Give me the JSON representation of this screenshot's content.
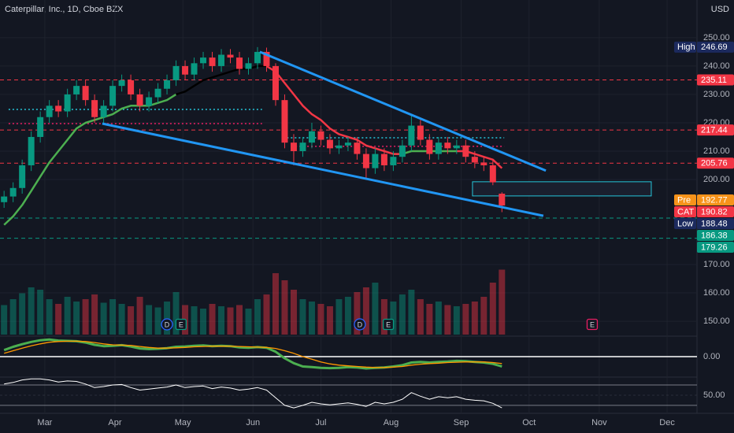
{
  "chart_data": {
    "type": "candlestick",
    "title": "Caterpillar, Inc., 1D, Cboe BZX",
    "currency": "USD",
    "up_color": "#089981",
    "down_color": "#f23645",
    "x": [
      43,
      47,
      51,
      55,
      59,
      63,
      67,
      71,
      75,
      79,
      83,
      87,
      91,
      95,
      99,
      103,
      107,
      111,
      115,
      119,
      123,
      127,
      131,
      135,
      139,
      143,
      147,
      151,
      155,
      159,
      163,
      167,
      171,
      175,
      179,
      183,
      187,
      191,
      195,
      199,
      203,
      207,
      211,
      215,
      219,
      223,
      227,
      231,
      235,
      239,
      243,
      247,
      251,
      255,
      259,
      263
    ],
    "open": [
      192,
      194,
      197,
      205,
      215,
      222,
      226,
      224,
      230,
      233,
      228,
      222,
      226,
      233,
      235,
      230,
      226,
      229,
      232,
      235,
      240,
      237,
      241,
      243,
      240,
      244,
      243,
      239,
      241,
      245,
      240,
      228,
      213,
      210,
      213,
      217,
      214,
      211,
      212,
      213,
      209,
      204,
      209,
      205,
      208,
      212,
      219,
      214,
      209,
      213,
      211,
      212,
      208,
      206,
      205,
      195
    ],
    "high": [
      196,
      199,
      207,
      217,
      224,
      228,
      228,
      232,
      235,
      235,
      230,
      228,
      235,
      237,
      237,
      232,
      231,
      234,
      237,
      242,
      242,
      243,
      245,
      245,
      246,
      246,
      245,
      243,
      246.69,
      246.5,
      241,
      230,
      216,
      215,
      220,
      219,
      216,
      214,
      215,
      215,
      211,
      211,
      211,
      210,
      214,
      222.5,
      221,
      216,
      215,
      215,
      214,
      214,
      210,
      208,
      207,
      195.5
    ],
    "low": [
      190,
      192,
      195,
      203,
      213,
      220,
      222,
      222,
      228,
      226,
      220,
      220,
      224,
      231,
      228,
      224,
      224,
      227,
      230,
      233,
      235,
      235,
      239,
      238,
      238,
      241,
      237,
      237,
      239,
      238,
      226,
      211,
      205,
      208,
      211,
      212,
      209,
      209,
      210,
      207,
      200,
      202,
      203,
      203,
      206,
      210,
      212,
      207,
      207,
      209,
      209,
      206,
      204,
      203,
      198,
      188.48
    ],
    "close": [
      194,
      197,
      205,
      215,
      222,
      226,
      224,
      230,
      233,
      228,
      222,
      226,
      233,
      235,
      230,
      226,
      229,
      232,
      235,
      240,
      237,
      241,
      243,
      240,
      244,
      243,
      239,
      241,
      245,
      240,
      228,
      213,
      210,
      213,
      217,
      214,
      211,
      212,
      213,
      209,
      204,
      209,
      205,
      208,
      212,
      219,
      214,
      209,
      213,
      211,
      212,
      208,
      206,
      205,
      199,
      190.82
    ],
    "volume": [
      2.5,
      3,
      3.5,
      4,
      3.8,
      3,
      2.6,
      3.2,
      2.8,
      3,
      3.4,
      2.7,
      3,
      2.6,
      2.4,
      3.2,
      2.5,
      2.3,
      2.8,
      3.6,
      2.5,
      2.4,
      2.2,
      2.6,
      2.4,
      2.3,
      2.5,
      2.2,
      3,
      3.4,
      5.2,
      4.6,
      3.8,
      3,
      2.8,
      2.6,
      2.4,
      3,
      3.2,
      3.6,
      4,
      4.4,
      3,
      2.8,
      3.4,
      3.8,
      3,
      2.6,
      2.8,
      2.5,
      2.4,
      2.6,
      2.8,
      3.2,
      4.4,
      5.5
    ],
    "volume_lim": [
      0,
      7
    ],
    "xlim": [
      41.2,
      349.2
    ],
    "xticks": [
      {
        "value": 61,
        "label": "Mar"
      },
      {
        "value": 92,
        "label": "Apr"
      },
      {
        "value": 122,
        "label": "May"
      },
      {
        "value": 153,
        "label": "Jun"
      },
      {
        "value": 183,
        "label": "Jul"
      },
      {
        "value": 214,
        "label": "Aug"
      },
      {
        "value": 245,
        "label": "Sep"
      },
      {
        "value": 275,
        "label": "Oct"
      },
      {
        "value": 306,
        "label": "Nov"
      },
      {
        "value": 336,
        "label": "Dec"
      }
    ],
    "ylim": [
      145.3,
      263.3
    ],
    "yticks": [
      {
        "value": 250,
        "label": "250.00"
      },
      {
        "value": 240,
        "label": "240.00"
      },
      {
        "value": 230,
        "label": "230.00"
      },
      {
        "value": 220,
        "label": "220.00"
      },
      {
        "value": 210,
        "label": "210.00"
      },
      {
        "value": 200,
        "label": "200.00"
      },
      {
        "value": 170,
        "label": "170.00"
      },
      {
        "value": 160,
        "label": "160.00"
      },
      {
        "value": 150,
        "label": "150.00"
      }
    ],
    "grid": true,
    "lines": [
      {
        "color": "#4caf50",
        "values": [
          184,
          187,
          191,
          196,
          201,
          206,
          210,
          214,
          218,
          220,
          221,
          222,
          223,
          225,
          226,
          226,
          226,
          227,
          228,
          230,
          null,
          null,
          null,
          null,
          null,
          null,
          null,
          null,
          null,
          null,
          null,
          null,
          null,
          null,
          null,
          null,
          null,
          null,
          null,
          null,
          null,
          null,
          null,
          209,
          209,
          210,
          210,
          210,
          210,
          210,
          210,
          null,
          null,
          null,
          null,
          null
        ]
      },
      {
        "color": "#000000",
        "values": [
          null,
          null,
          null,
          null,
          null,
          null,
          null,
          null,
          null,
          null,
          null,
          null,
          null,
          null,
          null,
          null,
          null,
          null,
          null,
          230,
          231,
          233,
          235,
          236,
          237,
          238,
          239,
          239,
          240,
          240,
          null,
          null,
          null,
          null,
          null,
          null,
          null,
          null,
          null,
          null,
          null,
          null,
          null,
          null,
          null,
          null,
          null,
          null,
          null,
          null,
          null,
          null,
          null,
          null,
          null,
          null
        ]
      },
      {
        "color": "#f23645",
        "values": [
          null,
          null,
          null,
          null,
          null,
          null,
          null,
          null,
          null,
          null,
          null,
          null,
          null,
          null,
          null,
          null,
          null,
          null,
          null,
          null,
          null,
          null,
          null,
          null,
          null,
          null,
          null,
          null,
          null,
          240,
          238,
          234,
          230,
          226,
          223,
          221,
          218,
          216,
          215,
          214,
          212,
          211,
          210,
          209,
          209,
          null,
          null,
          null,
          null,
          null,
          210,
          210,
          209,
          208,
          207,
          204
        ]
      }
    ],
    "trendlines": [
      {
        "color": "#2196f3",
        "x": [
          156,
          282.4
        ],
        "values": [
          245,
          203.1
        ]
      },
      {
        "color": "#2196f3",
        "x": [
          86.4,
          281.3
        ],
        "values": [
          219.7,
          187.2
        ]
      }
    ],
    "levels": [
      {
        "value": 235.11,
        "color": "#f23645"
      },
      {
        "value": 217.44,
        "color": "#f23645"
      },
      {
        "value": 205.76,
        "color": "#f23645"
      },
      {
        "value": 186.38,
        "color": "#089981"
      },
      {
        "value": 179.26,
        "color": "#089981"
      }
    ],
    "spans": [
      {
        "value": 224.7,
        "x": [
          45,
          157
        ],
        "color": "#26c6da"
      },
      {
        "value": 219.7,
        "x": [
          45,
          157
        ],
        "color": "#e91e63"
      },
      {
        "value": 214.7,
        "x": [
          168,
          264
        ],
        "color": "#26c6da"
      },
      {
        "value": 211.7,
        "x": [
          170,
          264
        ],
        "color": "#e91e63"
      }
    ],
    "box": {
      "x": [
        250,
        329
      ],
      "values": [
        199.2,
        194.2
      ],
      "color": "#26c6da"
    },
    "events": [
      {
        "x": 115,
        "label": "D",
        "color": "#2962ff"
      },
      {
        "x": 121.2,
        "label": "E",
        "color": "#089981"
      },
      {
        "x": 200.2,
        "label": "D",
        "color": "#2962ff"
      },
      {
        "x": 212.8,
        "label": "E",
        "color": "#089981"
      },
      {
        "x": 302.9,
        "label": "E",
        "color": "#e91e63"
      }
    ],
    "price_labels": [
      {
        "name": "High",
        "value": 246.69,
        "color": "#1c2a5e"
      },
      {
        "value": 235.11,
        "color": "#f23645"
      },
      {
        "value": 217.44,
        "color": "#f23645"
      },
      {
        "value": 205.76,
        "color": "#f23645"
      },
      {
        "name": "Pre",
        "value": 192.77,
        "color": "#f7931a"
      },
      {
        "name": "CAT",
        "value": 190.82,
        "color": "#f23645"
      },
      {
        "name": "Low",
        "value": 188.48,
        "color": "#1c2a5e"
      },
      {
        "value": 186.38,
        "color": "#089981"
      },
      {
        "value": 179.26,
        "color": "#089981"
      }
    ],
    "macd": {
      "ylim": [
        -6,
        6
      ],
      "yticks": [
        {
          "value": 0,
          "label": "0.00"
        }
      ],
      "series": [
        {
          "color": "#4caf50",
          "values": [
            2,
            3,
            3.8,
            4.5,
            5,
            5.2,
            4.9,
            4.8,
            4.7,
            4.3,
            3.6,
            3.2,
            3.3,
            3.5,
            3.1,
            2.5,
            2.3,
            2.4,
            2.6,
            3,
            3.1,
            3.3,
            3.4,
            3.2,
            3.3,
            3.2,
            2.8,
            2.7,
            2.9,
            2.7,
            1.5,
            -0.5,
            -2,
            -3,
            -3.2,
            -3.4,
            -3.5,
            -3.4,
            -3.2,
            -3.3,
            -3.6,
            -3.4,
            -3.3,
            -3,
            -2.6,
            -1.8,
            -1.6,
            -1.8,
            -1.6,
            -1.5,
            -1.3,
            -1.4,
            -1.6,
            -1.8,
            -2.2,
            -3
          ]
        },
        {
          "color": "#ff9800",
          "values": [
            1,
            1.8,
            2.6,
            3.3,
            3.9,
            4.4,
            4.6,
            4.7,
            4.7,
            4.6,
            4.3,
            3.9,
            3.6,
            3.5,
            3.4,
            3.1,
            2.8,
            2.6,
            2.6,
            2.7,
            2.8,
            3,
            3.1,
            3.2,
            3.2,
            3.2,
            3.1,
            3,
            2.9,
            2.8,
            2.5,
            1.8,
            1,
            0,
            -0.8,
            -1.6,
            -2.2,
            -2.6,
            -2.8,
            -3,
            -3.2,
            -3.3,
            -3.3,
            -3.2,
            -3,
            -2.6,
            -2.3,
            -2.1,
            -2,
            -1.8,
            -1.7,
            -1.6,
            -1.6,
            -1.6,
            -1.8,
            -2.1
          ]
        }
      ]
    },
    "rsi": {
      "ylim": [
        19,
        84
      ],
      "yticks": [
        {
          "value": 50,
          "label": "50.00"
        }
      ],
      "bands": [
        30,
        70
      ],
      "color": "#ffffff",
      "values": [
        72,
        75,
        80,
        82,
        82,
        80,
        76,
        78,
        77,
        72,
        65,
        67,
        70,
        71,
        65,
        60,
        62,
        64,
        66,
        70,
        65,
        67,
        68,
        63,
        66,
        64,
        60,
        62,
        65,
        60,
        45,
        30,
        25,
        30,
        36,
        33,
        31,
        33,
        35,
        32,
        28,
        36,
        33,
        36,
        42,
        55,
        48,
        42,
        47,
        45,
        47,
        42,
        40,
        39,
        34,
        25
      ]
    }
  }
}
